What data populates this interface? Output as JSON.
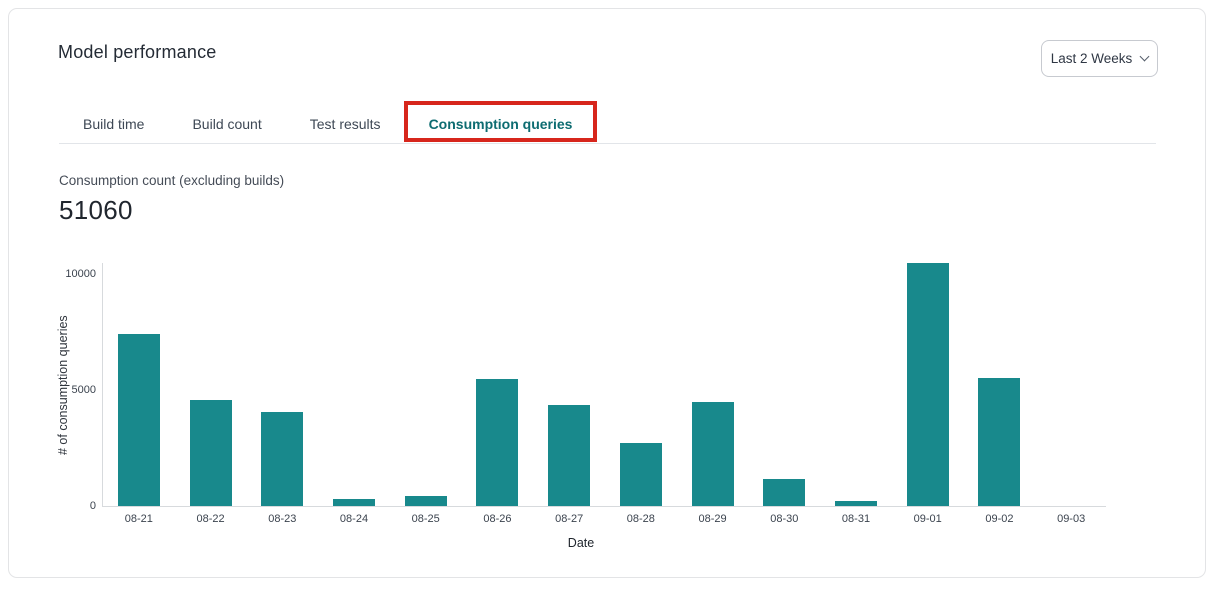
{
  "header": {
    "title": "Model performance",
    "range_selector": {
      "label": "Last 2 Weeks",
      "icon": "chevron-down"
    }
  },
  "tabs": [
    {
      "label": "Build time",
      "active": false
    },
    {
      "label": "Build count",
      "active": false
    },
    {
      "label": "Test results",
      "active": false
    },
    {
      "label": "Consumption queries",
      "active": true
    }
  ],
  "annotation": {
    "type": "highlight-box",
    "target_tab": "Consumption queries",
    "color": "#d7261c"
  },
  "metric": {
    "label": "Consumption count (excluding builds)",
    "value": "51060"
  },
  "chart_data": {
    "type": "bar",
    "categories": [
      "08-21",
      "08-22",
      "08-23",
      "08-24",
      "08-25",
      "08-26",
      "08-27",
      "08-28",
      "08-29",
      "08-30",
      "08-31",
      "09-01",
      "09-02",
      "09-03"
    ],
    "values": [
      7400,
      4560,
      4050,
      300,
      420,
      5480,
      4350,
      2700,
      4470,
      1150,
      200,
      10450,
      5530,
      0
    ],
    "title": "",
    "xlabel": "Date",
    "ylabel": "# of consumption queries",
    "yticks": [
      0,
      5000,
      10000
    ],
    "ylim": [
      0,
      10500
    ],
    "bar_color": "#18898c",
    "grid": false,
    "legend": false
  },
  "colors": {
    "accent_teal": "#0d6c71",
    "bar": "#18898c",
    "annotation_red": "#d7261c"
  }
}
